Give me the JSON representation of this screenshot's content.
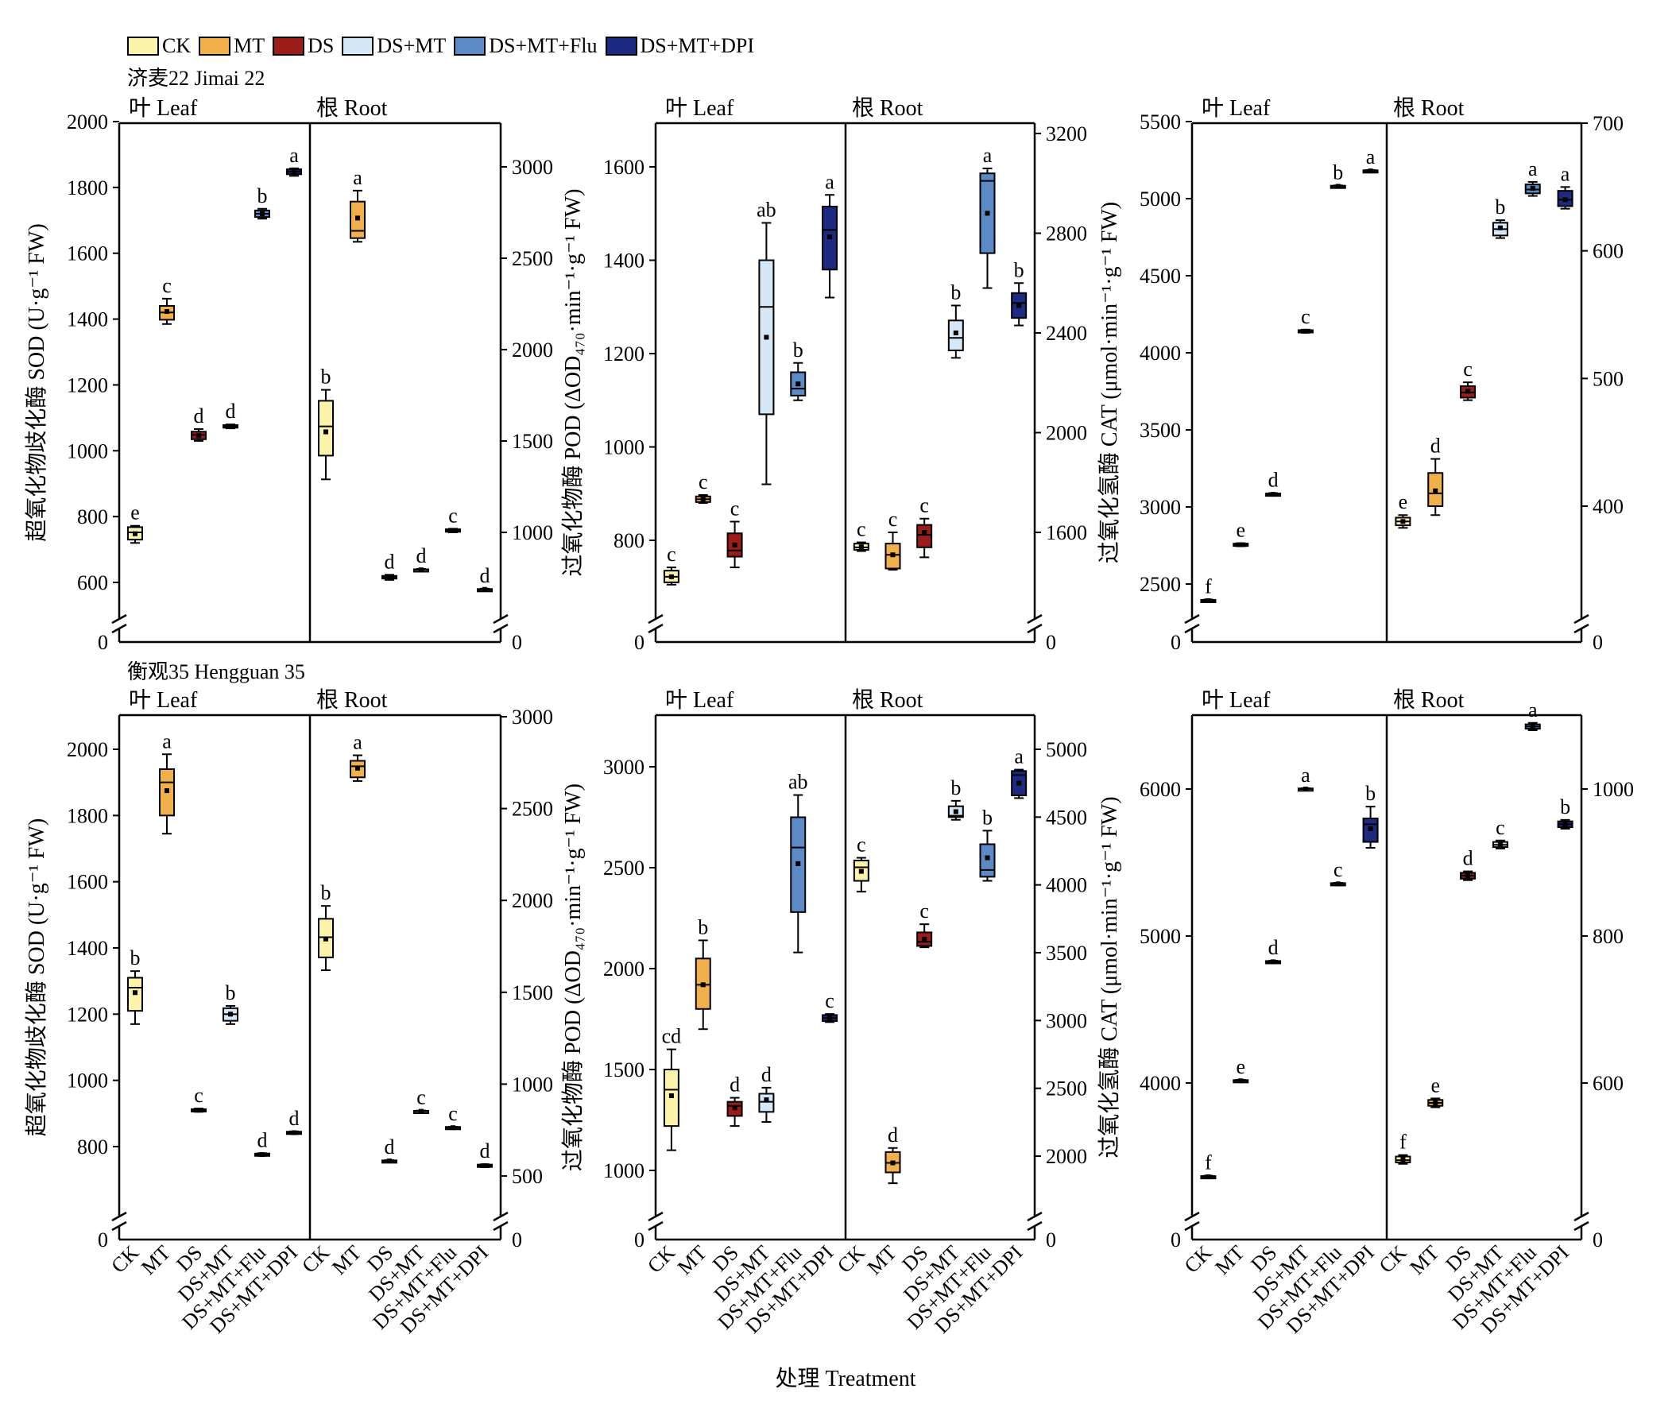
{
  "legend": [
    {
      "name": "CK",
      "color": "#fbf3a9"
    },
    {
      "name": "MT",
      "color": "#f2b04c"
    },
    {
      "name": "DS",
      "color": "#9c1c1a"
    },
    {
      "name": "DS+MT",
      "color": "#d6e8f6"
    },
    {
      "name": "DS+MT+Flu",
      "color": "#5b8ac6"
    },
    {
      "name": "DS+MT+DPI",
      "color": "#1c2a80"
    }
  ],
  "cultivars": {
    "top": "济麦22 Jimai 22",
    "bottom": "衡观35 Hengguan 35"
  },
  "panel_labels": {
    "leaf": "叶 Leaf",
    "root": "根 Root"
  },
  "xlabel": "处理 Treatment",
  "treatments": [
    "CK",
    "MT",
    "DS",
    "DS+MT",
    "DS+MT+Flu",
    "DS+MT+DPI"
  ],
  "ylabels": {
    "sod": "超氧化物歧化酶 SOD (U·g⁻¹ FW)",
    "pod": "过氧化物酶 POD (ΔOD₄₇₀·min⁻¹·g⁻¹ FW)",
    "cat": "过氧化氢酶 CAT (μmol·min⁻¹·g⁻¹ FW)"
  },
  "chart_data": [
    {
      "type": "box",
      "id": "jimai-sod",
      "cultivar": "Jimai 22",
      "enzyme": "SOD",
      "left_axis": {
        "ticks": [
          600,
          800,
          1000,
          1200,
          1400,
          1600,
          1800,
          2000
        ],
        "break_zero": true
      },
      "right_axis": {
        "ticks": [
          1000,
          1500,
          2000,
          2500,
          3000
        ],
        "break_zero": true
      },
      "leaf": [
        {
          "t": "CK",
          "min": 720,
          "q1": 730,
          "med": 752,
          "q3": 768,
          "max": 772,
          "mean": 748,
          "letter": "e"
        },
        {
          "t": "MT",
          "min": 1385,
          "q1": 1398,
          "med": 1420,
          "q3": 1440,
          "max": 1462,
          "mean": 1423,
          "letter": "c"
        },
        {
          "t": "DS",
          "min": 1030,
          "q1": 1035,
          "med": 1048,
          "q3": 1058,
          "max": 1066,
          "mean": 1046,
          "letter": "d"
        },
        {
          "t": "DS+MT",
          "min": 1068,
          "q1": 1070,
          "med": 1074,
          "q3": 1078,
          "max": 1080,
          "mean": 1074,
          "letter": "d"
        },
        {
          "t": "DS+MT+Flu",
          "min": 1705,
          "q1": 1710,
          "med": 1720,
          "q3": 1730,
          "max": 1735,
          "mean": 1720,
          "letter": "b"
        },
        {
          "t": "DS+MT+DPI",
          "min": 1835,
          "q1": 1840,
          "med": 1848,
          "q3": 1855,
          "max": 1858,
          "mean": 1848,
          "letter": "a"
        }
      ],
      "root": [
        {
          "t": "CK",
          "min": 1290,
          "q1": 1420,
          "med": 1580,
          "q3": 1720,
          "max": 1780,
          "mean": 1550,
          "letter": "b"
        },
        {
          "t": "MT",
          "min": 2590,
          "q1": 2610,
          "med": 2650,
          "q3": 2810,
          "max": 2870,
          "mean": 2720,
          "letter": "a"
        },
        {
          "t": "DS",
          "min": 740,
          "q1": 747,
          "med": 755,
          "q3": 762,
          "max": 768,
          "mean": 755,
          "letter": "d"
        },
        {
          "t": "DS+MT",
          "min": 790,
          "q1": 792,
          "med": 795,
          "q3": 798,
          "max": 800,
          "mean": 795,
          "letter": "d"
        },
        {
          "t": "DS+MT+Flu",
          "min": 1000,
          "q1": 1003,
          "med": 1010,
          "q3": 1017,
          "max": 1020,
          "mean": 1010,
          "letter": "c"
        },
        {
          "t": "DS+MT+DPI",
          "min": 683,
          "q1": 685,
          "med": 688,
          "q3": 690,
          "max": 692,
          "mean": 688,
          "letter": "d"
        }
      ]
    },
    {
      "type": "box",
      "id": "jimai-pod",
      "cultivar": "Jimai 22",
      "enzyme": "POD",
      "left_axis": {
        "ticks": [
          800,
          1000,
          1200,
          1400,
          1600
        ],
        "break_zero": true
      },
      "right_axis": {
        "ticks": [
          1600,
          2000,
          2400,
          2800,
          3200
        ],
        "break_zero": true
      },
      "leaf": [
        {
          "t": "CK",
          "min": 705,
          "q1": 710,
          "med": 722,
          "q3": 735,
          "max": 742,
          "mean": 722,
          "letter": "c"
        },
        {
          "t": "MT",
          "min": 880,
          "q1": 882,
          "med": 888,
          "q3": 894,
          "max": 897,
          "mean": 888,
          "letter": "c"
        },
        {
          "t": "DS",
          "min": 742,
          "q1": 765,
          "med": 778,
          "q3": 815,
          "max": 840,
          "mean": 790,
          "letter": "c"
        },
        {
          "t": "DS+MT",
          "min": 920,
          "q1": 1070,
          "med": 1300,
          "q3": 1400,
          "max": 1480,
          "mean": 1235,
          "letter": "ab"
        },
        {
          "t": "DS+MT+Flu",
          "min": 1100,
          "q1": 1110,
          "med": 1125,
          "q3": 1160,
          "max": 1180,
          "mean": 1135,
          "letter": "b"
        },
        {
          "t": "DS+MT+DPI",
          "min": 1320,
          "q1": 1380,
          "med": 1465,
          "q3": 1515,
          "max": 1540,
          "mean": 1450,
          "letter": "a"
        }
      ],
      "root": [
        {
          "t": "CK",
          "min": 1525,
          "q1": 1530,
          "med": 1540,
          "q3": 1555,
          "max": 1560,
          "mean": 1542,
          "letter": "c"
        },
        {
          "t": "MT",
          "min": 1450,
          "q1": 1455,
          "med": 1510,
          "q3": 1555,
          "max": 1600,
          "mean": 1510,
          "letter": "c"
        },
        {
          "t": "DS",
          "min": 1500,
          "q1": 1540,
          "med": 1590,
          "q3": 1630,
          "max": 1655,
          "mean": 1600,
          "letter": "c"
        },
        {
          "t": "DS+MT",
          "min": 2300,
          "q1": 2330,
          "med": 2380,
          "q3": 2450,
          "max": 2510,
          "mean": 2400,
          "letter": "b"
        },
        {
          "t": "DS+MT+Flu",
          "min": 2580,
          "q1": 2720,
          "med": 3010,
          "q3": 3040,
          "max": 3060,
          "mean": 2880,
          "letter": "a"
        },
        {
          "t": "DS+MT+DPI",
          "min": 2430,
          "q1": 2460,
          "med": 2520,
          "q3": 2560,
          "max": 2600,
          "mean": 2510,
          "letter": "b"
        }
      ]
    },
    {
      "type": "box",
      "id": "jimai-cat",
      "cultivar": "Jimai 22",
      "enzyme": "CAT",
      "left_axis": {
        "ticks": [
          2500,
          3000,
          3500,
          4000,
          4500,
          5000,
          5500
        ],
        "break_zero": true
      },
      "right_axis": {
        "ticks": [
          400,
          500,
          600,
          700
        ],
        "break_zero": true
      },
      "leaf": [
        {
          "t": "CK",
          "min": 2385,
          "q1": 2387,
          "med": 2392,
          "q3": 2397,
          "max": 2400,
          "mean": 2392,
          "letter": "f"
        },
        {
          "t": "MT",
          "min": 2745,
          "q1": 2748,
          "med": 2755,
          "q3": 2762,
          "max": 2765,
          "mean": 2755,
          "letter": "e"
        },
        {
          "t": "DS",
          "min": 3075,
          "q1": 3078,
          "med": 3082,
          "q3": 3087,
          "max": 3090,
          "mean": 3082,
          "letter": "d"
        },
        {
          "t": "DS+MT",
          "min": 4130,
          "q1": 4133,
          "med": 4140,
          "q3": 4147,
          "max": 4150,
          "mean": 4140,
          "letter": "c"
        },
        {
          "t": "DS+MT+Flu",
          "min": 5075,
          "q1": 5077,
          "med": 5080,
          "q3": 5084,
          "max": 5086,
          "mean": 5080,
          "letter": "b"
        },
        {
          "t": "DS+MT+DPI",
          "min": 5175,
          "q1": 5177,
          "med": 5180,
          "q3": 5184,
          "max": 5186,
          "mean": 5180,
          "letter": "a"
        }
      ],
      "root": [
        {
          "t": "CK",
          "min": 383,
          "q1": 385,
          "med": 388,
          "q3": 391,
          "max": 393,
          "mean": 388,
          "letter": "e"
        },
        {
          "t": "MT",
          "min": 393,
          "q1": 400,
          "med": 410,
          "q3": 426,
          "max": 437,
          "mean": 412,
          "letter": "d"
        },
        {
          "t": "DS",
          "min": 483,
          "q1": 485,
          "med": 489,
          "q3": 494,
          "max": 497,
          "mean": 490,
          "letter": "c"
        },
        {
          "t": "DS+MT",
          "min": 610,
          "q1": 612,
          "med": 617,
          "q3": 622,
          "max": 624,
          "mean": 618,
          "letter": "b"
        },
        {
          "t": "DS+MT+Flu",
          "min": 643,
          "q1": 645,
          "med": 648,
          "q3": 652,
          "max": 654,
          "mean": 649,
          "letter": "a"
        },
        {
          "t": "DS+MT+DPI",
          "min": 633,
          "q1": 635,
          "med": 640,
          "q3": 647,
          "max": 650,
          "mean": 640,
          "letter": "a"
        }
      ]
    },
    {
      "type": "box",
      "id": "hengguan-sod",
      "cultivar": "Hengguan 35",
      "enzyme": "SOD",
      "left_axis": {
        "ticks": [
          800,
          1000,
          1200,
          1400,
          1600,
          1800,
          2000
        ],
        "break_zero": true
      },
      "right_axis": {
        "ticks": [
          500,
          1000,
          1500,
          2000,
          2500,
          3000
        ],
        "break_zero": true
      },
      "leaf": [
        {
          "t": "CK",
          "min": 1170,
          "q1": 1210,
          "med": 1280,
          "q3": 1310,
          "max": 1330,
          "mean": 1265,
          "letter": "b"
        },
        {
          "t": "MT",
          "min": 1745,
          "q1": 1800,
          "med": 1900,
          "q3": 1940,
          "max": 1985,
          "mean": 1875,
          "letter": "a"
        },
        {
          "t": "DS",
          "min": 905,
          "q1": 907,
          "med": 910,
          "q3": 913,
          "max": 915,
          "mean": 910,
          "letter": "c"
        },
        {
          "t": "DS+MT",
          "min": 1170,
          "q1": 1180,
          "med": 1200,
          "q3": 1218,
          "max": 1225,
          "mean": 1200,
          "letter": "b"
        },
        {
          "t": "DS+MT+Flu",
          "min": 772,
          "q1": 773,
          "med": 776,
          "q3": 779,
          "max": 780,
          "mean": 776,
          "letter": "d"
        },
        {
          "t": "DS+MT+DPI",
          "min": 838,
          "q1": 839,
          "med": 842,
          "q3": 845,
          "max": 846,
          "mean": 842,
          "letter": "d"
        }
      ],
      "root": [
        {
          "t": "CK",
          "min": 1620,
          "q1": 1690,
          "med": 1800,
          "q3": 1900,
          "max": 1970,
          "mean": 1790,
          "letter": "b"
        },
        {
          "t": "MT",
          "min": 2650,
          "q1": 2670,
          "med": 2730,
          "q3": 2760,
          "max": 2790,
          "mean": 2720,
          "letter": "a"
        },
        {
          "t": "DS",
          "min": 578,
          "q1": 579,
          "med": 582,
          "q3": 585,
          "max": 586,
          "mean": 582,
          "letter": "d"
        },
        {
          "t": "DS+MT",
          "min": 848,
          "q1": 849,
          "med": 852,
          "q3": 855,
          "max": 856,
          "mean": 852,
          "letter": "c"
        },
        {
          "t": "DS+MT+Flu",
          "min": 758,
          "q1": 760,
          "med": 763,
          "q3": 767,
          "max": 768,
          "mean": 763,
          "letter": "c"
        },
        {
          "t": "DS+MT+DPI",
          "min": 548,
          "q1": 550,
          "med": 556,
          "q3": 562,
          "max": 564,
          "mean": 556,
          "letter": "d"
        }
      ]
    },
    {
      "type": "box",
      "id": "hengguan-pod",
      "cultivar": "Hengguan 35",
      "enzyme": "POD",
      "left_axis": {
        "ticks": [
          1000,
          1500,
          2000,
          2500,
          3000
        ],
        "break_zero": true
      },
      "right_axis": {
        "ticks": [
          2000,
          2500,
          3000,
          3500,
          4000,
          4500,
          5000
        ],
        "break_zero": true
      },
      "leaf": [
        {
          "t": "CK",
          "min": 1100,
          "q1": 1220,
          "med": 1400,
          "q3": 1500,
          "max": 1600,
          "mean": 1370,
          "letter": "cd"
        },
        {
          "t": "MT",
          "min": 1700,
          "q1": 1800,
          "med": 1920,
          "q3": 2050,
          "max": 2140,
          "mean": 1920,
          "letter": "b"
        },
        {
          "t": "DS",
          "min": 1220,
          "q1": 1270,
          "med": 1320,
          "q3": 1340,
          "max": 1360,
          "mean": 1310,
          "letter": "d"
        },
        {
          "t": "DS+MT",
          "min": 1240,
          "q1": 1290,
          "med": 1340,
          "q3": 1380,
          "max": 1410,
          "mean": 1350,
          "letter": "d"
        },
        {
          "t": "DS+MT+Flu",
          "min": 2080,
          "q1": 2280,
          "med": 2600,
          "q3": 2750,
          "max": 2860,
          "mean": 2520,
          "letter": "ab"
        },
        {
          "t": "DS+MT+DPI",
          "min": 1735,
          "q1": 1740,
          "med": 1755,
          "q3": 1770,
          "max": 1775,
          "mean": 1755,
          "letter": "c"
        }
      ],
      "root": [
        {
          "t": "CK",
          "min": 3950,
          "q1": 4030,
          "med": 4130,
          "q3": 4180,
          "max": 4200,
          "mean": 4100,
          "letter": "c"
        },
        {
          "t": "MT",
          "min": 1800,
          "q1": 1880,
          "med": 1950,
          "q3": 2030,
          "max": 2060,
          "mean": 1950,
          "letter": "d"
        },
        {
          "t": "DS",
          "min": 3540,
          "q1": 3550,
          "med": 3580,
          "q3": 3650,
          "max": 3710,
          "mean": 3600,
          "letter": "c"
        },
        {
          "t": "DS+MT",
          "min": 4480,
          "q1": 4500,
          "med": 4510,
          "q3": 4580,
          "max": 4620,
          "mean": 4540,
          "letter": "b"
        },
        {
          "t": "DS+MT+Flu",
          "min": 4030,
          "q1": 4060,
          "med": 4110,
          "q3": 4300,
          "max": 4400,
          "mean": 4200,
          "letter": "b"
        },
        {
          "t": "DS+MT+DPI",
          "min": 4640,
          "q1": 4660,
          "med": 4810,
          "q3": 4840,
          "max": 4850,
          "mean": 4750,
          "letter": "a"
        }
      ]
    },
    {
      "type": "box",
      "id": "hengguan-cat",
      "cultivar": "Hengguan 35",
      "enzyme": "CAT",
      "left_axis": {
        "ticks": [
          4000,
          5000,
          6000
        ],
        "break_zero": true
      },
      "right_axis": {
        "ticks": [
          600,
          800,
          1000
        ],
        "break_zero": true
      },
      "leaf": [
        {
          "t": "CK",
          "min": 3355,
          "q1": 3357,
          "med": 3362,
          "q3": 3367,
          "max": 3370,
          "mean": 3362,
          "letter": "f"
        },
        {
          "t": "MT",
          "min": 4008,
          "q1": 4010,
          "med": 4015,
          "q3": 4020,
          "max": 4022,
          "mean": 4015,
          "letter": "e"
        },
        {
          "t": "DS",
          "min": 4818,
          "q1": 4820,
          "med": 4825,
          "q3": 4830,
          "max": 4832,
          "mean": 4825,
          "letter": "d"
        },
        {
          "t": "DS+MT",
          "min": 5995,
          "q1": 5997,
          "med": 6000,
          "q3": 6004,
          "max": 6006,
          "mean": 6000,
          "letter": "a"
        },
        {
          "t": "DS+MT+Flu",
          "min": 5348,
          "q1": 5350,
          "med": 5355,
          "q3": 5360,
          "max": 5362,
          "mean": 5355,
          "letter": "c"
        },
        {
          "t": "DS+MT+DPI",
          "min": 5600,
          "q1": 5640,
          "med": 5760,
          "q3": 5800,
          "max": 5880,
          "mean": 5730,
          "letter": "b"
        }
      ],
      "root": [
        {
          "t": "CK",
          "min": 490,
          "q1": 492,
          "med": 495,
          "q3": 500,
          "max": 502,
          "mean": 496,
          "letter": "f"
        },
        {
          "t": "MT",
          "min": 567,
          "q1": 569,
          "med": 573,
          "q3": 577,
          "max": 579,
          "mean": 573,
          "letter": "e"
        },
        {
          "t": "DS",
          "min": 876,
          "q1": 878,
          "med": 882,
          "q3": 886,
          "max": 888,
          "mean": 882,
          "letter": "d"
        },
        {
          "t": "DS+MT",
          "min": 919,
          "q1": 921,
          "med": 924,
          "q3": 928,
          "max": 930,
          "mean": 924,
          "letter": "c"
        },
        {
          "t": "DS+MT+Flu",
          "min": 1080,
          "q1": 1082,
          "med": 1085,
          "q3": 1088,
          "max": 1090,
          "mean": 1085,
          "letter": "a"
        },
        {
          "t": "DS+MT+DPI",
          "min": 946,
          "q1": 948,
          "med": 952,
          "q3": 956,
          "max": 958,
          "mean": 952,
          "letter": "b"
        }
      ]
    }
  ]
}
